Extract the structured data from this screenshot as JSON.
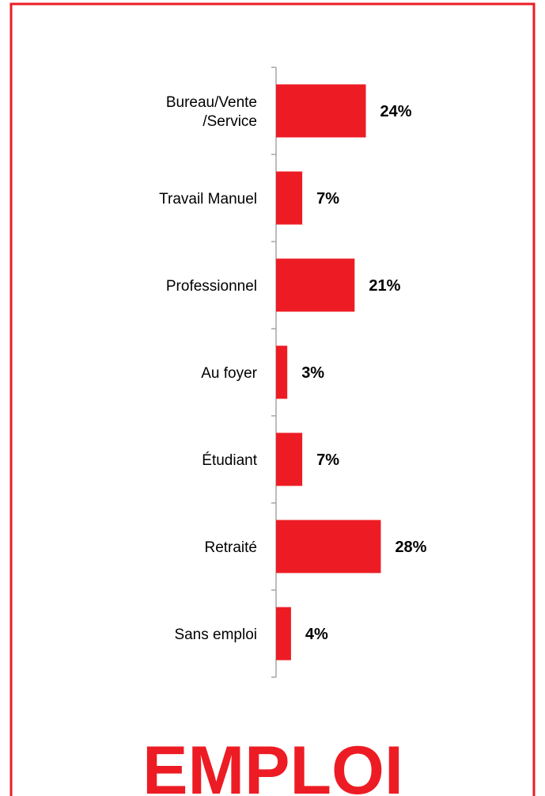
{
  "chart_data": {
    "type": "bar",
    "orientation": "horizontal",
    "title": "EMPLOI",
    "categories": [
      "Bureau/Vente\n/Service",
      "Travail Manuel",
      "Professionnel",
      "Au foyer",
      "Étudiant",
      "Retraité",
      "Sans emploi"
    ],
    "values": [
      24,
      7,
      21,
      3,
      7,
      28,
      4
    ],
    "value_labels": [
      "24%",
      "7%",
      "21%",
      "3%",
      "7%",
      "28%",
      "4%"
    ],
    "color": "#ed1c24"
  }
}
